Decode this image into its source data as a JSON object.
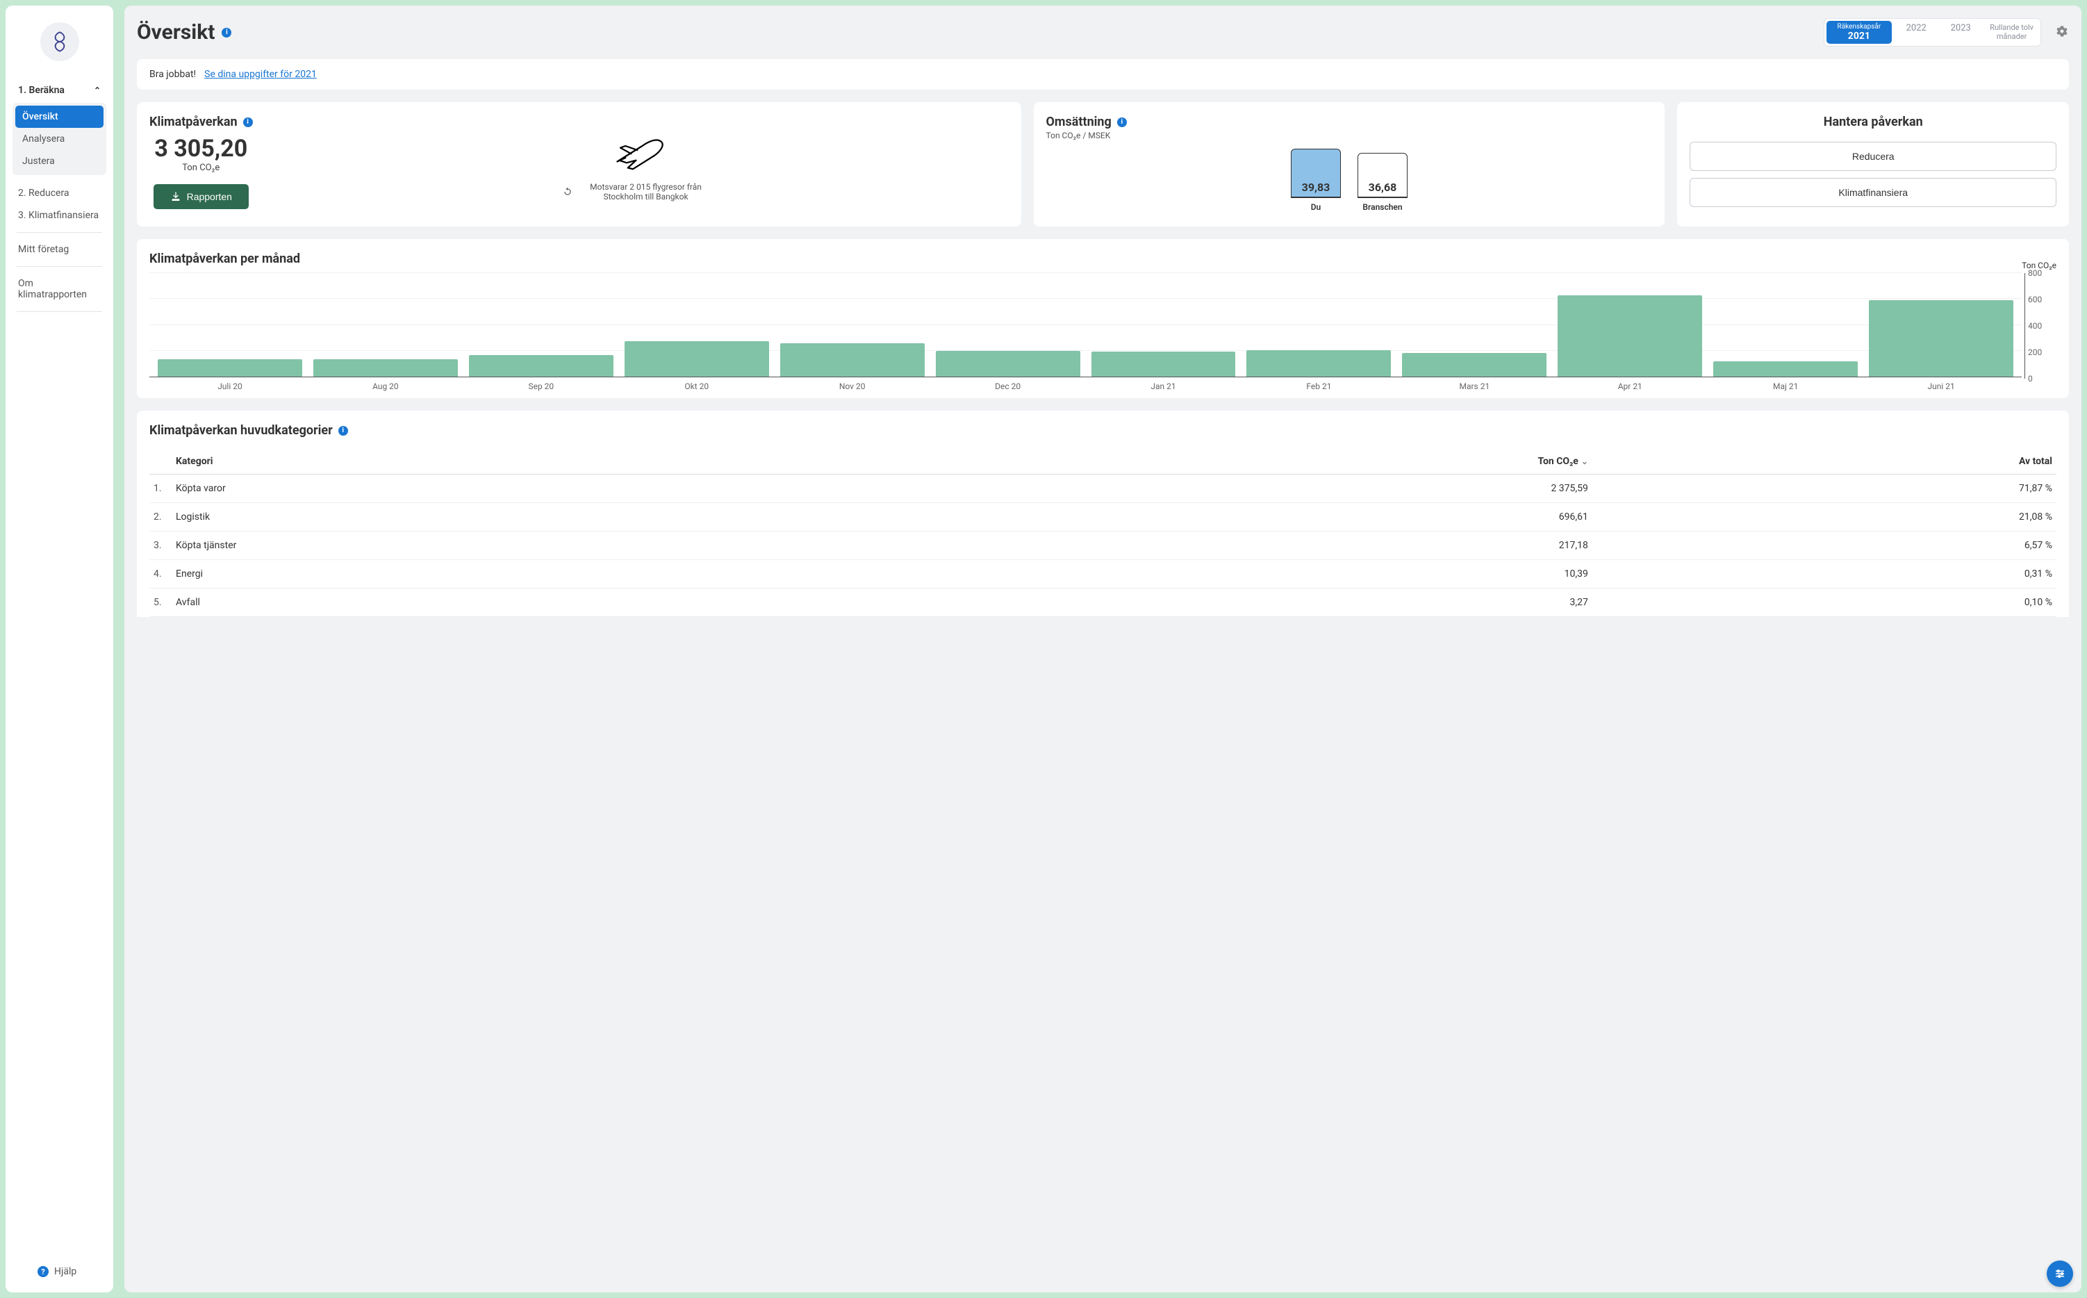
{
  "page": {
    "title": "Översikt"
  },
  "sidebar": {
    "section1": {
      "label": "1. Beräkna"
    },
    "sub": {
      "oversikt": "Översikt",
      "analysera": "Analysera",
      "justera": "Justera"
    },
    "reducera": "2. Reducera",
    "klimatfin": "3. Klimatfinansiera",
    "foretag": "Mitt företag",
    "rapport": "Om klimatrapporten",
    "help": "Hjälp"
  },
  "years": {
    "active_label": "Räkenskapsår",
    "active_value": "2021",
    "y2022": "2022",
    "y2023": "2023",
    "rolling1": "Rullande tolv",
    "rolling2": "månader"
  },
  "banner": {
    "prefix": "Bra jobbat!",
    "link": "Se dina uppgifter för 2021"
  },
  "klimat": {
    "title": "Klimatpåverkan",
    "value": "3 305,20",
    "unit": "Ton CO₂e",
    "button": "Rapporten",
    "equiv": "Motsvarar 2 015 flygresor från Stockholm till Bangkok"
  },
  "oms": {
    "title": "Omsättning",
    "subtitle": "Ton CO₂e / MSEK",
    "you_value": "39,83",
    "you_label": "Du",
    "industry_value": "36,68",
    "industry_label": "Branschen"
  },
  "hantera": {
    "title": "Hantera påverkan",
    "btn1": "Reducera",
    "btn2": "Klimatfinansiera"
  },
  "monthly": {
    "title": "Klimatpåverkan per månad",
    "y_title": "Ton CO₂e",
    "y_max": 800,
    "ticks": {
      "t800": "800",
      "t600": "600",
      "t400": "400",
      "t200": "200",
      "t0": "0"
    },
    "bars": [
      {
        "label": "Juli 20",
        "value": 135
      },
      {
        "label": "Aug 20",
        "value": 135
      },
      {
        "label": "Sep 20",
        "value": 165
      },
      {
        "label": "Okt 20",
        "value": 275
      },
      {
        "label": "Nov 20",
        "value": 260
      },
      {
        "label": "Dec 20",
        "value": 200
      },
      {
        "label": "Jan 21",
        "value": 195
      },
      {
        "label": "Feb 21",
        "value": 205
      },
      {
        "label": "Mars 21",
        "value": 185
      },
      {
        "label": "Apr 21",
        "value": 630
      },
      {
        "label": "Maj 21",
        "value": 120
      },
      {
        "label": "Juni 21",
        "value": 590
      }
    ],
    "bar_color": "#81c3a6"
  },
  "categories": {
    "title": "Klimatpåverkan huvudkategorier",
    "col_kategori": "Kategori",
    "col_ton": "Ton CO₂e",
    "col_total": "Av total",
    "rows": [
      {
        "idx": "1.",
        "name": "Köpta varor",
        "ton": "2 375,59",
        "pct": "71,87 %"
      },
      {
        "idx": "2.",
        "name": "Logistik",
        "ton": "696,61",
        "pct": "21,08 %"
      },
      {
        "idx": "3.",
        "name": "Köpta tjänster",
        "ton": "217,18",
        "pct": "6,57 %"
      },
      {
        "idx": "4.",
        "name": "Energi",
        "ton": "10,39",
        "pct": "0,31 %"
      },
      {
        "idx": "5.",
        "name": "Avfall",
        "ton": "3,27",
        "pct": "0,10 %"
      }
    ]
  }
}
